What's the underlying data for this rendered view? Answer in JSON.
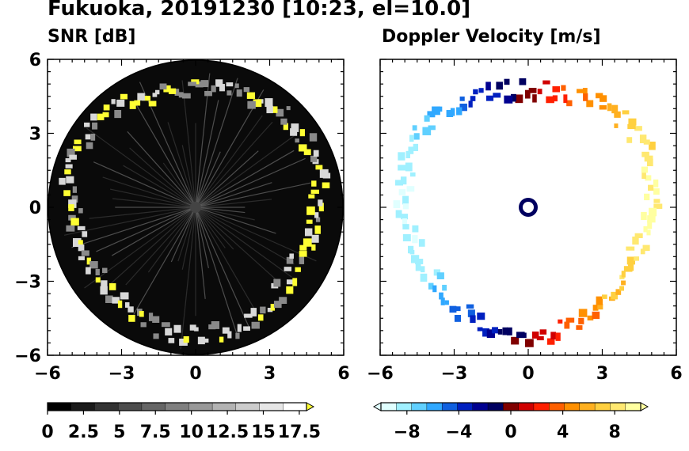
{
  "figure": {
    "title": "Fukuoka, 20191230 [10:23, el=10.0]"
  },
  "chart_data": [
    {
      "type": "heatmap",
      "title": "SNR [dB]",
      "xlabel": "",
      "ylabel": "",
      "xlim": [
        -6,
        6
      ],
      "ylim": [
        -6,
        6
      ],
      "xticks": [
        "−6",
        "−3",
        "0",
        "3",
        "6"
      ],
      "yticks": [
        "6",
        "3",
        "0",
        "−3",
        "−6"
      ],
      "colorbar": {
        "min": 0,
        "max": 18,
        "extend": "max",
        "tick_values": [
          0,
          2.5,
          5,
          7.5,
          10,
          12.5,
          15,
          17.5
        ],
        "tick_labels": [
          "0",
          "2.5",
          "5",
          "7.5",
          "10",
          "12.5",
          "15",
          "17.5"
        ],
        "colors": [
          "#000000",
          "#1a1a1a",
          "#333333",
          "#4d4d4d",
          "#666666",
          "#808080",
          "#999999",
          "#b3b3b3",
          "#cccccc",
          "#e6e6e6",
          "#ffffff",
          "#ffff33"
        ]
      },
      "echo_ring_radius_km": 5.0,
      "grid": false
    },
    {
      "type": "heatmap",
      "title": "Doppler Velocity [m/s]",
      "xlabel": "",
      "ylabel": "",
      "xlim": [
        -6,
        6
      ],
      "ylim": [
        -6,
        6
      ],
      "xticks": [
        "−6",
        "−3",
        "0",
        "3",
        "6"
      ],
      "yticks": [],
      "colorbar": {
        "min": -10,
        "max": 10,
        "extend": "both",
        "tick_values": [
          -8,
          -4,
          0,
          4,
          8
        ],
        "tick_labels": [
          "−8",
          "−4",
          "0",
          "4",
          "8"
        ],
        "colors": [
          "#e0ffff",
          "#a0f0ff",
          "#60d0ff",
          "#30a8ff",
          "#1060e0",
          "#0020c0",
          "#000090",
          "#000060",
          "#800000",
          "#d00000",
          "#ff2000",
          "#ff6000",
          "#ff9000",
          "#ffb020",
          "#ffd040",
          "#ffe870",
          "#ffffa0"
        ]
      },
      "echo_ring_radius_km": 5.0,
      "velocity_pattern": "negative (blue) on west side, positive (red/yellow) on east side",
      "grid": false
    }
  ]
}
